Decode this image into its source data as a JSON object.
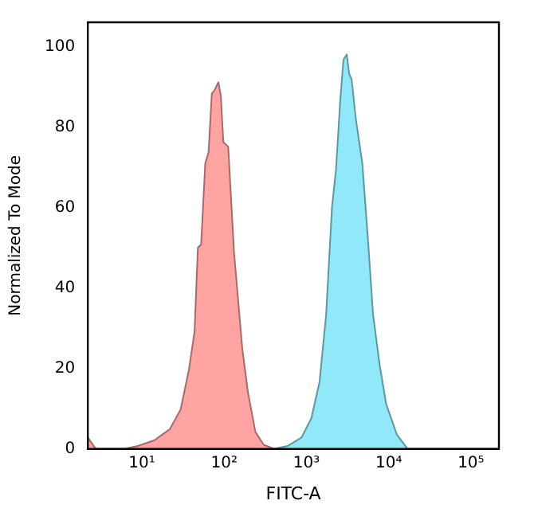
{
  "chart_data": {
    "type": "area",
    "xlabel": "FITC-A",
    "ylabel": "Normalized To Mode",
    "log": "x",
    "xlim": [
      2.2,
      219000
    ],
    "ylim": [
      0,
      106
    ],
    "xticks": [
      {
        "value": 10,
        "label": "10¹"
      },
      {
        "value": 100,
        "label": "10²"
      },
      {
        "value": 1000,
        "label": "10³"
      },
      {
        "value": 10000,
        "label": "10⁴"
      },
      {
        "value": 100000,
        "label": "10⁵"
      }
    ],
    "yticks": [
      0,
      20,
      40,
      60,
      80,
      100
    ],
    "grid": false,
    "legend": false,
    "series": [
      {
        "color": "#ffa3a3",
        "x": [
          2.2,
          2.75,
          6.2,
          8.9,
          14.1,
          21.9,
          29.5,
          37.2,
          43.7,
          47.9,
          52.5,
          58.9,
          64.6,
          70.8,
          75.9,
          85.1,
          91.2,
          97.7,
          112,
          132,
          166,
          195,
          240,
          302,
          407
        ],
        "values": [
          2.8,
          0,
          0,
          0.7,
          2.1,
          4.9,
          9.7,
          19.5,
          29.2,
          50,
          50.8,
          70.9,
          73.7,
          88.3,
          89,
          91.1,
          87.6,
          76.2,
          75.1,
          48.7,
          25,
          13.9,
          4.2,
          1,
          0
        ]
      },
      {
        "color": "#90e8f8",
        "x": [
          407,
          589,
          871,
          1148,
          1445,
          1738,
          2042,
          2291,
          2570,
          2818,
          3090,
          3311,
          3548,
          3981,
          4786,
          5623,
          6457,
          7762,
          9333,
          12590,
          16980,
          218800
        ],
        "values": [
          0,
          0.7,
          2.8,
          7.6,
          16.7,
          33.4,
          59.8,
          69.5,
          86.2,
          96.7,
          98,
          93.2,
          91.8,
          82.1,
          70.9,
          51.5,
          33.4,
          20.9,
          11.1,
          3.5,
          0,
          0
        ]
      }
    ]
  }
}
